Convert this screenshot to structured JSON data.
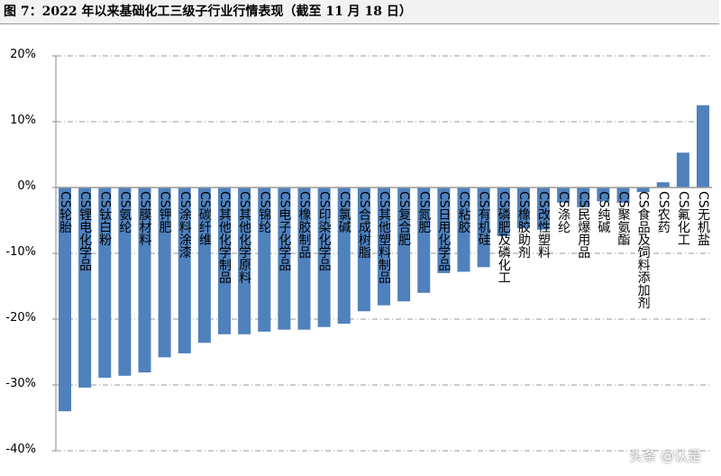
{
  "title": "图 7：2022 年以来基础化工三级子行业行情表现（截至 11 月 18 日）",
  "watermark": "头条 @认是",
  "chart_data": {
    "type": "bar",
    "title": "",
    "ylim": [
      -40,
      20
    ],
    "yticks": [
      "-40%",
      "-30%",
      "-20%",
      "-10%",
      "0%",
      "10%",
      "20%"
    ],
    "ytick_values": [
      -40,
      -30,
      -20,
      -10,
      0,
      10,
      20
    ],
    "grid": "horizontal dash-dot",
    "bar_color": "#4f81bd",
    "categories": [
      "CS轮胎",
      "CS锂电化学品",
      "CS钛白粉",
      "CS氨纶",
      "CS膜材料",
      "CS钾肥",
      "CS涂料涂漆",
      "CS碳纤维",
      "CS其他化学制品",
      "CS其他化学原料",
      "CS锦纶",
      "CS电子化学品",
      "CS橡胶制品",
      "CS印染化学品",
      "CS氯碱",
      "CS合成树脂",
      "CS其他塑料制品",
      "CS复合肥",
      "CS氮肥",
      "CS日用化学品",
      "CS粘胶",
      "CS有机硅",
      "CS磷肥及磷化工",
      "CS橡胶助剂",
      "CS改性塑料",
      "CS涤纶",
      "CS民爆用品",
      "CS纯碱",
      "CS聚氨酯",
      "CS食品及饲料添加剂",
      "CS农药",
      "CS氟化工",
      "CS无机盐"
    ],
    "values": [
      -34.0,
      -30.4,
      -28.9,
      -28.6,
      -28.1,
      -25.8,
      -25.2,
      -23.6,
      -22.3,
      -22.3,
      -21.9,
      -21.6,
      -21.6,
      -21.2,
      -20.7,
      -18.8,
      -17.9,
      -17.3,
      -16.0,
      -13.0,
      -12.8,
      -12.1,
      -7.4,
      -6.2,
      -6.4,
      -2.3,
      -3.0,
      -2.1,
      -2.3,
      -0.7,
      0.8,
      5.3,
      12.5
    ]
  }
}
